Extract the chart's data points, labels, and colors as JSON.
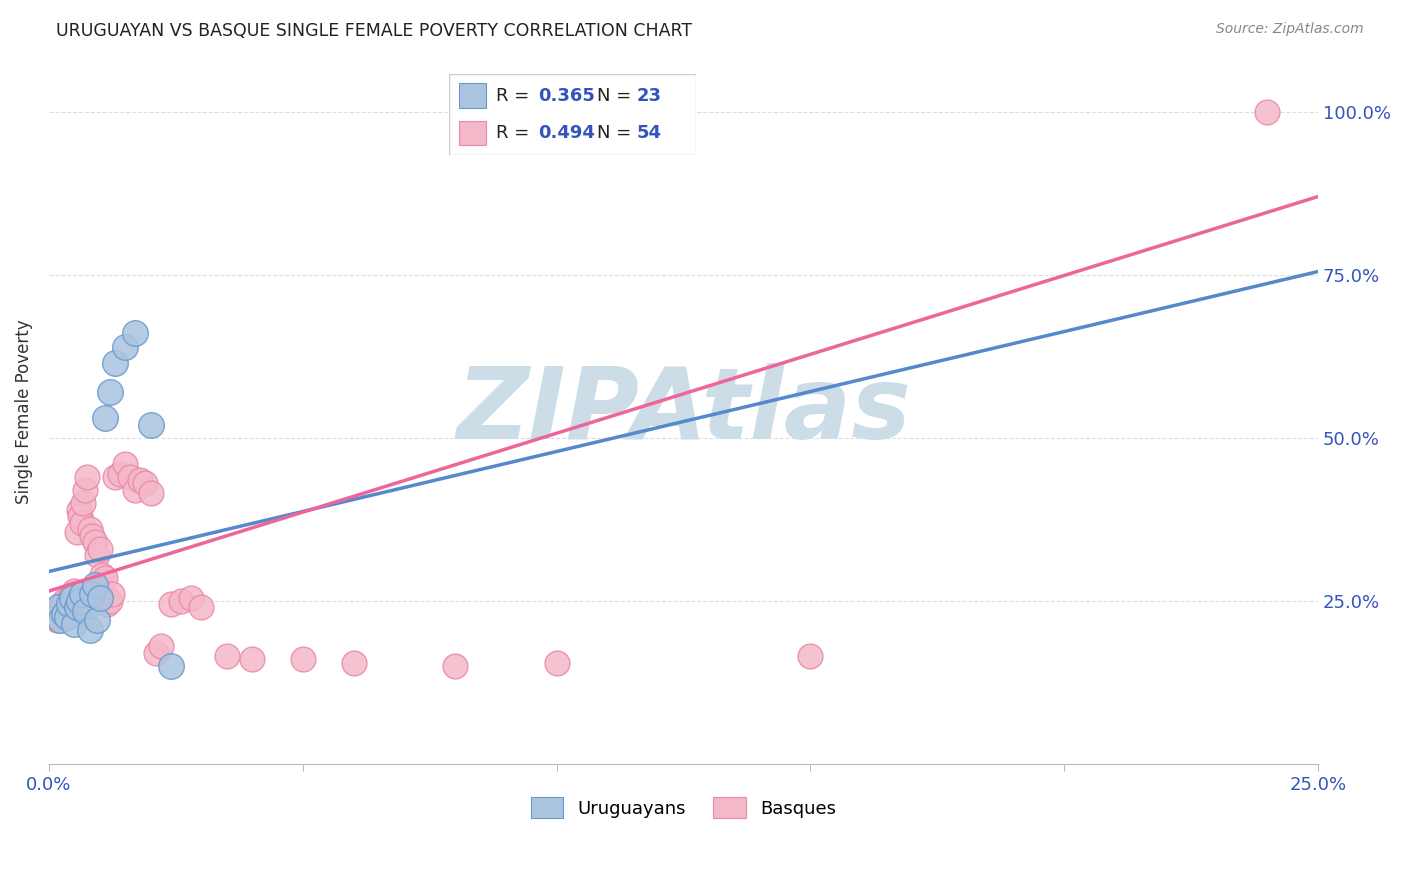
{
  "title": "URUGUAYAN VS BASQUE SINGLE FEMALE POVERTY CORRELATION CHART",
  "source": "Source: ZipAtlas.com",
  "ylabel": "Single Female Poverty",
  "xlim": [
    0.0,
    0.25
  ],
  "ylim": [
    0.0,
    1.08
  ],
  "yticks": [
    0.25,
    0.5,
    0.75,
    1.0
  ],
  "ytick_labels": [
    "25.0%",
    "50.0%",
    "75.0%",
    "100.0%"
  ],
  "xtick_positions": [
    0.0,
    0.05,
    0.1,
    0.15,
    0.2,
    0.25
  ],
  "xtick_labels": [
    "0.0%",
    "",
    "",
    "",
    "",
    "25.0%"
  ],
  "blue_R": 0.365,
  "blue_N": 23,
  "pink_R": 0.494,
  "pink_N": 54,
  "blue_color": "#aac4e0",
  "pink_color": "#f4b8c8",
  "blue_edge_color": "#6699cc",
  "pink_edge_color": "#e888aa",
  "blue_line_color": "#5588cc",
  "pink_line_color": "#ee6699",
  "watermark": "ZIPAtlas",
  "watermark_color": "#ccdde8",
  "title_color": "#222222",
  "source_color": "#888888",
  "axis_label_color": "#333333",
  "tick_color": "#3355bb",
  "grid_color": "#dddddd",
  "legend_box_color": "#eeeeee",
  "blue_line_x": [
    0.0,
    0.25
  ],
  "blue_line_y": [
    0.295,
    0.755
  ],
  "pink_line_x": [
    0.0,
    0.25
  ],
  "pink_line_y": [
    0.265,
    0.87
  ],
  "blue_scatter_x": [
    0.0018,
    0.0022,
    0.003,
    0.0035,
    0.004,
    0.0045,
    0.005,
    0.0055,
    0.006,
    0.0065,
    0.007,
    0.008,
    0.0085,
    0.009,
    0.0095,
    0.01,
    0.011,
    0.012,
    0.013,
    0.015,
    0.017,
    0.02,
    0.024
  ],
  "blue_scatter_y": [
    0.24,
    0.22,
    0.23,
    0.225,
    0.245,
    0.255,
    0.215,
    0.24,
    0.25,
    0.26,
    0.235,
    0.205,
    0.26,
    0.275,
    0.22,
    0.255,
    0.53,
    0.57,
    0.615,
    0.64,
    0.66,
    0.52,
    0.15
  ],
  "pink_scatter_x": [
    0.001,
    0.0015,
    0.0018,
    0.002,
    0.0022,
    0.0025,
    0.0028,
    0.003,
    0.0032,
    0.0035,
    0.0037,
    0.004,
    0.0042,
    0.0045,
    0.005,
    0.0055,
    0.006,
    0.0062,
    0.0065,
    0.0068,
    0.007,
    0.0075,
    0.008,
    0.0085,
    0.009,
    0.0095,
    0.01,
    0.0105,
    0.011,
    0.0115,
    0.012,
    0.0125,
    0.013,
    0.014,
    0.015,
    0.016,
    0.017,
    0.018,
    0.019,
    0.02,
    0.021,
    0.022,
    0.024,
    0.026,
    0.028,
    0.03,
    0.035,
    0.04,
    0.05,
    0.06,
    0.08,
    0.1,
    0.15,
    0.24
  ],
  "pink_scatter_y": [
    0.23,
    0.22,
    0.225,
    0.24,
    0.235,
    0.245,
    0.23,
    0.25,
    0.225,
    0.235,
    0.245,
    0.25,
    0.255,
    0.26,
    0.265,
    0.355,
    0.39,
    0.38,
    0.37,
    0.4,
    0.42,
    0.44,
    0.36,
    0.35,
    0.34,
    0.32,
    0.33,
    0.29,
    0.285,
    0.245,
    0.25,
    0.26,
    0.44,
    0.445,
    0.46,
    0.44,
    0.42,
    0.435,
    0.43,
    0.415,
    0.17,
    0.18,
    0.245,
    0.25,
    0.255,
    0.24,
    0.165,
    0.16,
    0.16,
    0.155,
    0.15,
    0.155,
    0.165,
    1.0
  ]
}
